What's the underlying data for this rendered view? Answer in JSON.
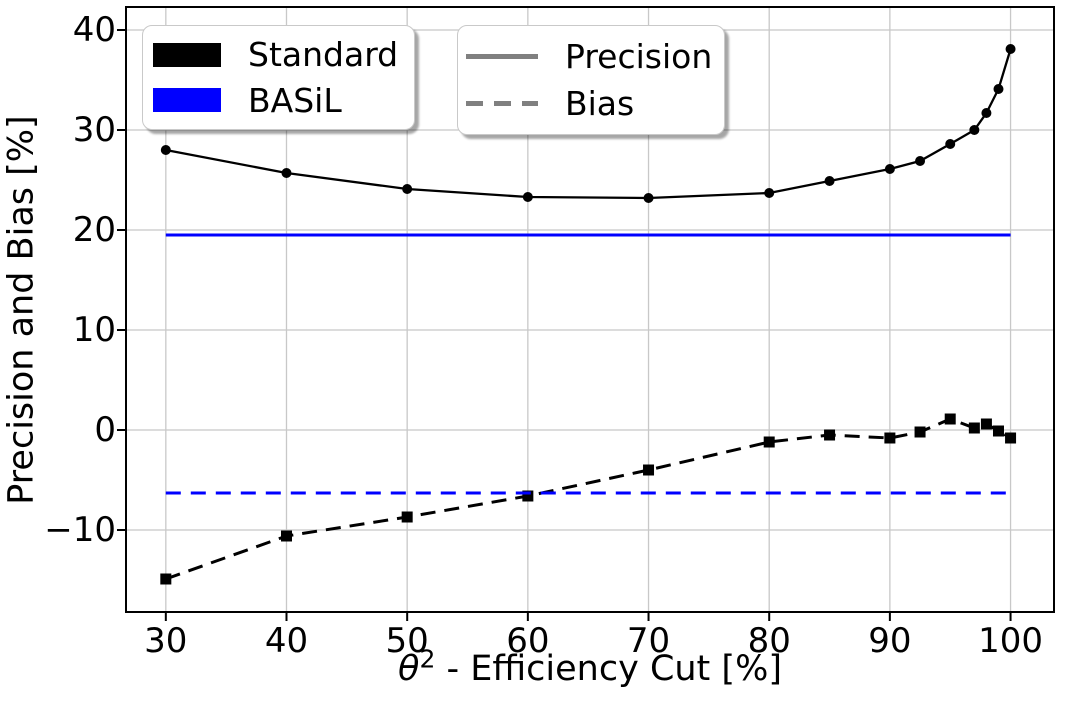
{
  "chart_data": {
    "type": "line",
    "title": "",
    "xlabel": "θ² - Efficiency Cut [%]",
    "ylabel": "Precision and Bias [%]",
    "xlabel_parts": {
      "theta": "θ",
      "sup": "2",
      "rest": " - Efficiency Cut [%]"
    },
    "xlim": [
      26.7,
      103.6
    ],
    "ylim": [
      -18.2,
      42.3
    ],
    "xticks": [
      30,
      40,
      50,
      60,
      70,
      80,
      90,
      100
    ],
    "yticks": [
      -10,
      0,
      10,
      20,
      30,
      40
    ],
    "xtick_labels": [
      "30",
      "40",
      "50",
      "60",
      "70",
      "80",
      "90",
      "100"
    ],
    "ytick_labels": [
      "−10",
      "0",
      "10",
      "20",
      "30",
      "40"
    ],
    "grid": true,
    "grid_color": "#c8c8c8",
    "axis_color": "#000000",
    "legend_positions": [
      "upper left",
      "upper center"
    ],
    "series": [
      {
        "name": "standard-precision",
        "legend_group": "Standard",
        "measure": "Precision",
        "color": "#000000",
        "line": "solid",
        "marker": "circle",
        "line_width": 2.3,
        "x": [
          30,
          40,
          50,
          60,
          70,
          80,
          85,
          90,
          92.5,
          95,
          97,
          98,
          99,
          100
        ],
        "y": [
          28.0,
          25.7,
          24.1,
          23.3,
          23.2,
          23.7,
          24.9,
          26.1,
          26.9,
          28.6,
          30.0,
          31.7,
          34.1,
          38.1
        ]
      },
      {
        "name": "standard-bias",
        "legend_group": "Standard",
        "measure": "Bias",
        "color": "#000000",
        "line": "dashed",
        "dash": [
          15,
          9
        ],
        "marker": "square",
        "line_width": 3,
        "x": [
          30,
          40,
          50,
          60,
          70,
          80,
          85,
          90,
          92.5,
          95,
          97,
          98,
          99,
          100
        ],
        "y": [
          -14.9,
          -10.6,
          -8.7,
          -6.6,
          -4.0,
          -1.2,
          -0.5,
          -0.8,
          -0.2,
          1.1,
          0.2,
          0.6,
          -0.1,
          -0.8
        ]
      },
      {
        "name": "basil-precision",
        "legend_group": "BASiL",
        "measure": "Precision",
        "color": "#0000ff",
        "line": "solid",
        "marker": "none",
        "line_width": 3,
        "x": [
          30,
          100
        ],
        "y": [
          19.5,
          19.5
        ]
      },
      {
        "name": "basil-bias",
        "legend_group": "BASiL",
        "measure": "Bias",
        "color": "#0000ff",
        "line": "dashed",
        "dash": [
          15,
          10
        ],
        "marker": "none",
        "line_width": 3,
        "x": [
          30,
          100
        ],
        "y": [
          -6.3,
          -6.3
        ]
      }
    ]
  },
  "legends": {
    "datasets": {
      "items": [
        {
          "label": "Standard",
          "color": "#000000"
        },
        {
          "label": "BASiL",
          "color": "#0000ff"
        }
      ]
    },
    "linestyles": {
      "items": [
        {
          "label": "Precision",
          "style": "solid",
          "color": "#808080"
        },
        {
          "label": "Bias",
          "style": "dashed",
          "color": "#808080"
        }
      ]
    }
  }
}
